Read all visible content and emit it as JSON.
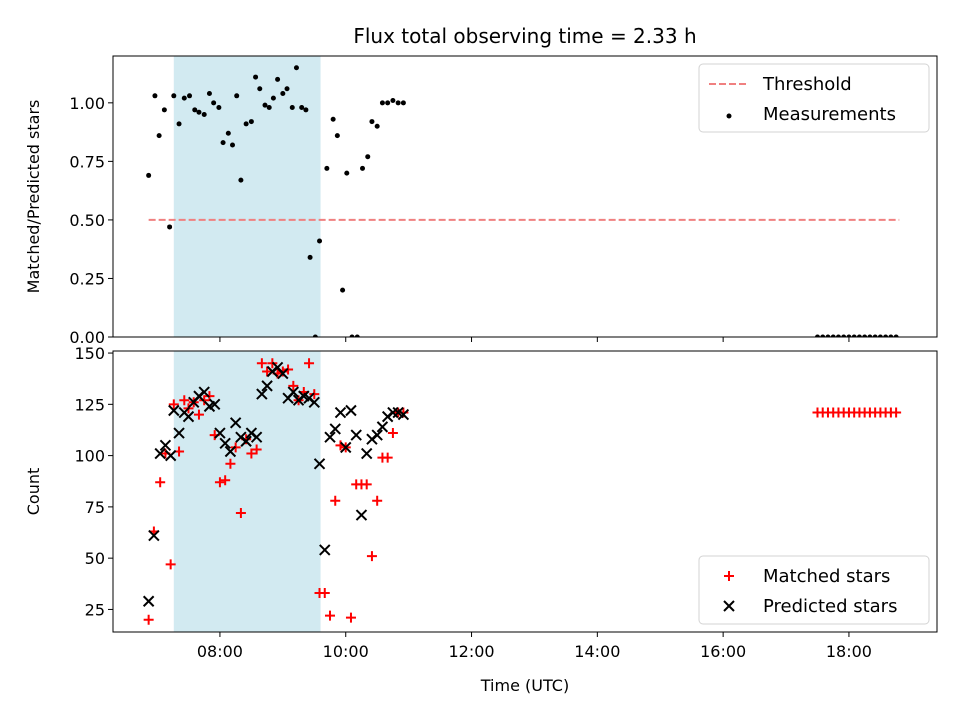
{
  "chart_data": [
    {
      "type": "scatter",
      "title": "Flux total observing time = 2.33 h",
      "xlabel": "",
      "ylabel": "Matched/Predicted stars",
      "x_unit": "hours (UTC)",
      "xlim": [
        "06:18",
        "19:24"
      ],
      "ylim": [
        0,
        1.2
      ],
      "yticks": [
        "0.00",
        "0.25",
        "0.50",
        "0.75",
        "1.00"
      ],
      "shaded_interval": [
        "07:16",
        "09:36"
      ],
      "shade_color": "#add8e6",
      "legend_position": "top-right",
      "series": [
        {
          "name": "Threshold",
          "style": "dashed-line",
          "color": "#f08080",
          "x": [
            "06:52",
            "18:48"
          ],
          "y": [
            0.5,
            0.5
          ]
        },
        {
          "name": "Measurements",
          "style": "dot",
          "color": "#000000",
          "x": [
            "06:52",
            "06:58",
            "07:02",
            "07:07",
            "07:12",
            "07:16",
            "07:21",
            "07:26",
            "07:31",
            "07:36",
            "07:40",
            "07:45",
            "07:50",
            "07:54",
            "07:59",
            "08:03",
            "08:08",
            "08:12",
            "08:16",
            "08:20",
            "08:25",
            "08:30",
            "08:34",
            "08:38",
            "08:43",
            "08:47",
            "08:51",
            "08:55",
            "09:00",
            "09:04",
            "09:09",
            "09:13",
            "09:18",
            "09:22",
            "09:26",
            "09:31",
            "09:35",
            "09:42",
            "09:48",
            "09:52",
            "09:57",
            "10:01",
            "10:06",
            "10:11",
            "10:16",
            "10:21",
            "10:25",
            "10:30",
            "10:35",
            "10:40",
            "10:45",
            "10:50",
            "10:55"
          ],
          "y": [
            0.69,
            1.03,
            0.86,
            0.97,
            0.47,
            1.03,
            0.91,
            1.02,
            1.03,
            0.97,
            0.96,
            0.95,
            1.04,
            1.0,
            0.98,
            0.83,
            0.87,
            0.82,
            1.03,
            0.67,
            0.91,
            0.92,
            1.11,
            1.06,
            0.99,
            0.98,
            1.02,
            1.1,
            1.04,
            1.06,
            0.98,
            1.15,
            0.98,
            0.97,
            0.34,
            0.0,
            0.41,
            0.72,
            0.93,
            0.86,
            0.2,
            0.7,
            0.0,
            0.0,
            0.72,
            0.77,
            0.92,
            0.9,
            1.0,
            1.0,
            1.01,
            1.0,
            1.0
          ]
        },
        {
          "name": "",
          "style": "dot",
          "color": "#000000",
          "x": [
            "17:30",
            "17:35",
            "17:40",
            "17:45",
            "17:50",
            "17:55",
            "18:00",
            "18:05",
            "18:10",
            "18:15",
            "18:20",
            "18:25",
            "18:30",
            "18:35",
            "18:40",
            "18:45"
          ],
          "y": [
            0,
            0,
            0,
            0,
            0,
            0,
            0,
            0,
            0,
            0,
            0,
            0,
            0,
            0,
            0,
            0
          ]
        }
      ]
    },
    {
      "type": "scatter",
      "title": "",
      "xlabel": "Time (UTC)",
      "ylabel": "Count",
      "x_unit": "hours (UTC)",
      "xlim": [
        "06:18",
        "19:24"
      ],
      "ylim": [
        14,
        151
      ],
      "xticks": [
        "08:00",
        "10:00",
        "12:00",
        "14:00",
        "16:00",
        "18:00"
      ],
      "yticks": [
        "25",
        "50",
        "75",
        "100",
        "125",
        "150"
      ],
      "shaded_interval": [
        "07:16",
        "09:36"
      ],
      "shade_color": "#add8e6",
      "legend_position": "bottom-right",
      "series": [
        {
          "name": "Matched stars",
          "style": "plus",
          "color": "#ff0000",
          "x": [
            "06:52",
            "06:57",
            "07:03",
            "07:08",
            "07:13",
            "07:16",
            "07:21",
            "07:26",
            "07:30",
            "07:35",
            "07:40",
            "07:45",
            "07:50",
            "07:55",
            "08:00",
            "08:05",
            "08:10",
            "08:15",
            "08:20",
            "08:25",
            "08:30",
            "08:35",
            "08:40",
            "08:45",
            "08:50",
            "08:55",
            "09:00",
            "09:05",
            "09:10",
            "09:15",
            "09:20",
            "09:25",
            "09:30",
            "09:35",
            "09:40",
            "09:45",
            "09:50",
            "09:55",
            "10:00",
            "10:05",
            "10:10",
            "10:15",
            "10:20",
            "10:25",
            "10:30",
            "10:35",
            "10:40",
            "10:45",
            "10:50",
            "10:55",
            "17:30",
            "17:35",
            "17:40",
            "17:45",
            "17:50",
            "17:55",
            "18:00",
            "18:05",
            "18:10",
            "18:15",
            "18:20",
            "18:25",
            "18:30",
            "18:35",
            "18:40",
            "18:45"
          ],
          "y": [
            20,
            63,
            87,
            101,
            47,
            125,
            102,
            127,
            123,
            126,
            120,
            127,
            129,
            110,
            87,
            88,
            96,
            104,
            72,
            108,
            101,
            103,
            145,
            141,
            145,
            140,
            141,
            142,
            134,
            127,
            131,
            145,
            130,
            33,
            33,
            22,
            78,
            105,
            104,
            21,
            86,
            86,
            86,
            51,
            78,
            99,
            99,
            111,
            121,
            121,
            121,
            121,
            121,
            121,
            121,
            121,
            121,
            121,
            121,
            121,
            121,
            121,
            121,
            121,
            121,
            121
          ]
        },
        {
          "name": "Predicted stars",
          "style": "x",
          "color": "#000000",
          "x": [
            "06:52",
            "06:57",
            "07:03",
            "07:08",
            "07:13",
            "07:16",
            "07:21",
            "07:26",
            "07:30",
            "07:35",
            "07:40",
            "07:45",
            "07:50",
            "07:55",
            "08:00",
            "08:05",
            "08:10",
            "08:15",
            "08:20",
            "08:25",
            "08:30",
            "08:35",
            "08:40",
            "08:45",
            "08:50",
            "08:55",
            "09:00",
            "09:05",
            "09:10",
            "09:15",
            "09:20",
            "09:25",
            "09:30",
            "09:35",
            "09:40",
            "09:45",
            "09:50",
            "09:55",
            "10:00",
            "10:05",
            "10:10",
            "10:15",
            "10:20",
            "10:25",
            "10:30",
            "10:35",
            "10:40",
            "10:45",
            "10:50",
            "10:55"
          ],
          "y": [
            29,
            61,
            101,
            105,
            100,
            122,
            111,
            121,
            119,
            126,
            129,
            131,
            124,
            125,
            111,
            106,
            102,
            116,
            109,
            107,
            111,
            109,
            130,
            134,
            141,
            143,
            140,
            128,
            131,
            127,
            129,
            128,
            126,
            96,
            54,
            109,
            113,
            121,
            104,
            122,
            110,
            71,
            101,
            108,
            110,
            114,
            119,
            121,
            121,
            120
          ]
        }
      ]
    }
  ]
}
